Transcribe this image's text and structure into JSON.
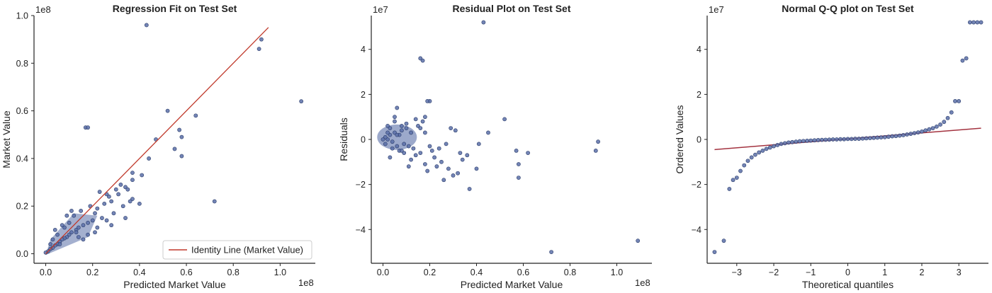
{
  "chart_data": [
    {
      "type": "scatter",
      "title": "Regression Fit on Test Set",
      "xlabel": "Predicted Market Value",
      "ylabel": "Market Value",
      "x_offset_label": "1e8",
      "y_offset_label": "1e8",
      "xlim": [
        -0.05,
        1.15
      ],
      "ylim": [
        -0.04,
        1.0
      ],
      "xticks": [
        0.0,
        0.2,
        0.4,
        0.6,
        0.8,
        1.0
      ],
      "xtick_labels": [
        "0.0",
        "0.2",
        "0.4",
        "0.6",
        "0.8",
        "1.0"
      ],
      "yticks": [
        0.0,
        0.2,
        0.4,
        0.6,
        0.8,
        1.0
      ],
      "ytick_labels": [
        "0.0",
        "0.2",
        "0.4",
        "0.6",
        "0.8",
        "1.0"
      ],
      "grid": false,
      "legend": {
        "position": "lower-right",
        "entries": [
          "Identity Line (Market Value)"
        ]
      },
      "identity_line": {
        "x": [
          0.0,
          0.95
        ],
        "y": [
          0.0,
          0.95
        ],
        "color": "#c0392b"
      },
      "marker_color": "#5a6fa8",
      "series": [
        {
          "x": [
            0.43,
            0.92,
            0.91,
            1.09,
            0.52,
            0.57,
            0.64,
            0.58,
            0.55,
            0.47,
            0.58,
            0.72,
            0.17,
            0.18,
            0.37,
            0.44,
            0.41,
            0.37,
            0.32,
            0.3,
            0.37,
            0.34,
            0.26,
            0.28,
            0.25,
            0.22,
            0.21,
            0.24,
            0.2,
            0.18,
            0.16,
            0.14,
            0.13,
            0.11,
            0.1,
            0.09,
            0.08,
            0.07,
            0.06,
            0.05,
            0.04,
            0.03,
            0.02,
            0.01,
            0.0,
            0.12,
            0.15,
            0.19,
            0.23,
            0.27,
            0.31,
            0.35,
            0.05,
            0.08,
            0.1,
            0.03,
            0.06,
            0.09,
            0.11,
            0.14,
            0.02,
            0.04,
            0.07,
            0.13,
            0.16,
            0.18,
            0.22,
            0.26,
            0.29,
            0.33,
            0.36,
            0.4,
            0.28,
            0.34,
            0.21
          ],
          "y": [
            0.96,
            0.9,
            0.86,
            0.64,
            0.6,
            0.52,
            0.58,
            0.49,
            0.44,
            0.48,
            0.41,
            0.22,
            0.53,
            0.53,
            0.34,
            0.4,
            0.33,
            0.31,
            0.29,
            0.27,
            0.23,
            0.28,
            0.25,
            0.22,
            0.21,
            0.19,
            0.17,
            0.15,
            0.14,
            0.13,
            0.12,
            0.11,
            0.1,
            0.09,
            0.08,
            0.07,
            0.065,
            0.06,
            0.05,
            0.04,
            0.035,
            0.025,
            0.02,
            0.01,
            0.005,
            0.16,
            0.18,
            0.2,
            0.26,
            0.24,
            0.25,
            0.27,
            0.08,
            0.11,
            0.13,
            0.06,
            0.04,
            0.16,
            0.18,
            0.07,
            0.04,
            0.1,
            0.12,
            0.09,
            0.06,
            0.08,
            0.11,
            0.14,
            0.17,
            0.2,
            0.22,
            0.21,
            0.12,
            0.15,
            0.09
          ]
        }
      ]
    },
    {
      "type": "scatter",
      "title": "Residual Plot on Test Set",
      "xlabel": "Predicted Market Value",
      "ylabel": "Residuals",
      "x_offset_label": "1e8",
      "y_offset_label": "1e7",
      "xlim": [
        -0.05,
        1.15
      ],
      "ylim": [
        -5.5,
        5.5
      ],
      "xticks": [
        0.0,
        0.2,
        0.4,
        0.6,
        0.8,
        1.0
      ],
      "xtick_labels": [
        "0.0",
        "0.2",
        "0.4",
        "0.6",
        "0.8",
        "1.0"
      ],
      "yticks": [
        -4,
        -2,
        0,
        2,
        4
      ],
      "ytick_labels": [
        "−4",
        "−2",
        "0",
        "2",
        "4"
      ],
      "grid": false,
      "marker_color": "#5a6fa8",
      "series": [
        {
          "x": [
            0.43,
            0.16,
            0.17,
            0.72,
            1.09,
            0.92,
            0.91,
            0.52,
            0.57,
            0.58,
            0.58,
            0.62,
            0.45,
            0.37,
            0.36,
            0.32,
            0.3,
            0.28,
            0.26,
            0.25,
            0.23,
            0.22,
            0.21,
            0.2,
            0.19,
            0.18,
            0.17,
            0.16,
            0.15,
            0.14,
            0.13,
            0.12,
            0.11,
            0.1,
            0.09,
            0.08,
            0.07,
            0.06,
            0.05,
            0.04,
            0.03,
            0.02,
            0.01,
            0.0,
            0.01,
            0.02,
            0.03,
            0.04,
            0.05,
            0.06,
            0.07,
            0.08,
            0.09,
            0.1,
            0.12,
            0.14,
            0.16,
            0.18,
            0.2,
            0.24,
            0.27,
            0.31,
            0.34,
            0.41,
            0.4,
            0.33,
            0.29,
            0.18,
            0.19,
            0.11,
            0.06,
            0.03,
            0.05,
            0.02,
            0.08
          ],
          "y": [
            5.2,
            3.6,
            3.5,
            -5.0,
            -4.5,
            -0.1,
            -0.5,
            0.9,
            -0.5,
            -1.1,
            -1.7,
            -0.6,
            0.3,
            -2.2,
            -0.7,
            -1.5,
            -1.6,
            -1.3,
            -1.8,
            -1.0,
            -1.2,
            -0.8,
            -0.5,
            1.7,
            1.7,
            1.0,
            0.8,
            -0.6,
            0.6,
            -0.7,
            -0.4,
            0.3,
            -0.3,
            0.5,
            -0.2,
            0.6,
            0.2,
            -0.3,
            0.3,
            -0.1,
            0.2,
            0.0,
            0.1,
            0.0,
            -0.2,
            0.3,
            0.5,
            -0.4,
            0.8,
            0.2,
            -0.5,
            0.4,
            -0.6,
            0.7,
            -0.9,
            0.9,
            0.5,
            0.3,
            -0.3,
            -0.4,
            -0.2,
            0.4,
            -0.9,
            -0.2,
            -1.3,
            -0.6,
            0.5,
            -1.1,
            -1.4,
            -1.2,
            1.4,
            -0.8,
            1.0,
            0.6,
            -0.5
          ]
        }
      ]
    },
    {
      "type": "scatter",
      "title": "Normal Q-Q plot on Test Set",
      "xlabel": "Theoretical quantiles",
      "ylabel": "Ordered Values",
      "y_offset_label": "1e7",
      "xlim": [
        -3.8,
        3.8
      ],
      "ylim": [
        -5.5,
        5.5
      ],
      "xticks": [
        -3,
        -2,
        -1,
        0,
        1,
        2,
        3
      ],
      "xtick_labels": [
        "−3",
        "−2",
        "−1",
        "0",
        "1",
        "2",
        "3"
      ],
      "yticks": [
        -4,
        -2,
        0,
        2,
        4
      ],
      "ytick_labels": [
        "−4",
        "−2",
        "0",
        "2",
        "4"
      ],
      "grid": false,
      "fit_line": {
        "x": [
          -3.6,
          3.6
        ],
        "y": [
          -0.45,
          0.5
        ],
        "color": "#a3323f"
      },
      "marker_color": "#5a6fa8",
      "series": [
        {
          "x": [
            -3.6,
            -3.35,
            -3.2,
            -3.1,
            -3.0,
            -2.9,
            -2.8,
            -2.7,
            -2.6,
            -2.5,
            -2.4,
            -2.3,
            -2.2,
            -2.1,
            -2.0,
            -1.9,
            -1.8,
            -1.7,
            -1.6,
            -1.5,
            -1.4,
            -1.3,
            -1.2,
            -1.1,
            -1.0,
            -0.9,
            -0.8,
            -0.7,
            -0.6,
            -0.5,
            -0.4,
            -0.3,
            -0.2,
            -0.1,
            0.0,
            0.1,
            0.2,
            0.3,
            0.4,
            0.5,
            0.6,
            0.7,
            0.8,
            0.9,
            1.0,
            1.1,
            1.2,
            1.3,
            1.4,
            1.5,
            1.6,
            1.7,
            1.8,
            1.9,
            2.0,
            2.1,
            2.2,
            2.3,
            2.4,
            2.5,
            2.6,
            2.7,
            2.8,
            2.9,
            3.0,
            3.1,
            3.2,
            3.3,
            3.4,
            3.5,
            3.6
          ],
          "y": [
            -5.0,
            -4.5,
            -2.2,
            -1.8,
            -1.7,
            -1.4,
            -1.15,
            -0.95,
            -0.8,
            -0.68,
            -0.58,
            -0.5,
            -0.42,
            -0.36,
            -0.3,
            -0.25,
            -0.2,
            -0.17,
            -0.14,
            -0.12,
            -0.1,
            -0.08,
            -0.07,
            -0.06,
            -0.05,
            -0.04,
            -0.03,
            -0.02,
            -0.015,
            -0.01,
            0.0,
            0.0,
            0.01,
            0.01,
            0.02,
            0.02,
            0.03,
            0.03,
            0.04,
            0.05,
            0.06,
            0.07,
            0.08,
            0.09,
            0.1,
            0.12,
            0.14,
            0.15,
            0.17,
            0.19,
            0.22,
            0.25,
            0.28,
            0.31,
            0.35,
            0.4,
            0.45,
            0.5,
            0.57,
            0.66,
            0.78,
            0.95,
            1.2,
            1.7,
            1.7,
            3.5,
            3.6,
            5.2,
            5.2,
            5.2,
            5.2
          ]
        }
      ]
    }
  ]
}
